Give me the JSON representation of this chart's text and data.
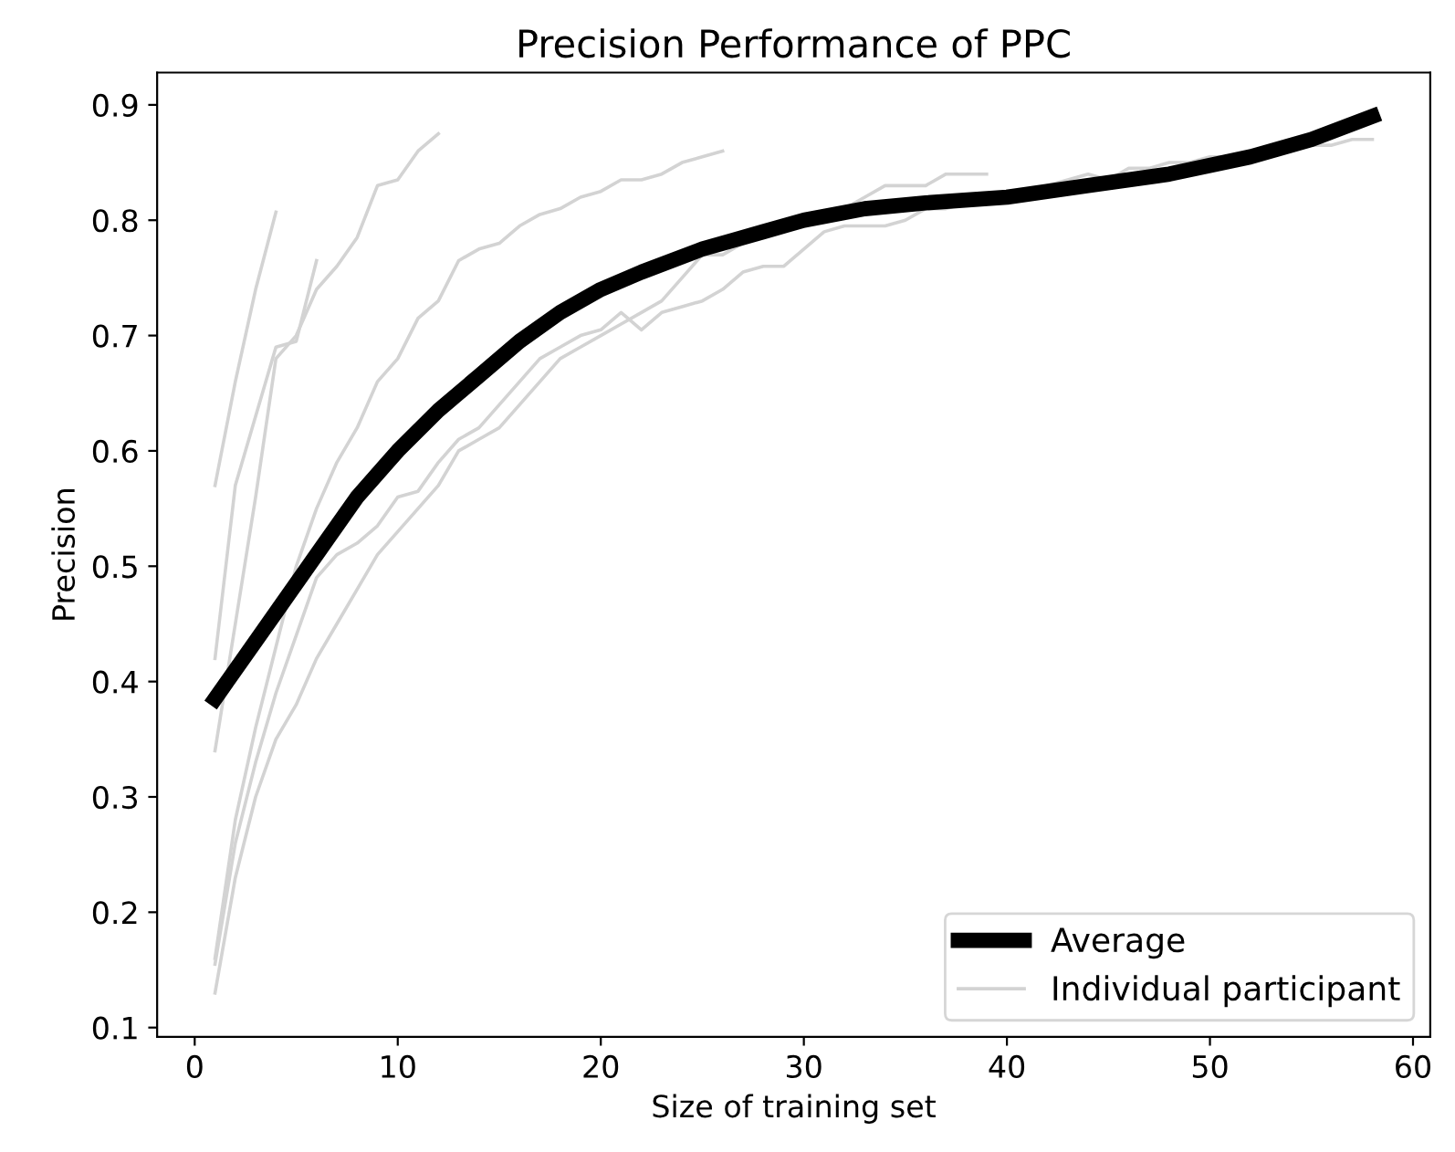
{
  "chart_data": {
    "type": "line",
    "title": "Precision Performance of PPC",
    "xlabel": "Size of training set",
    "ylabel": "Precision",
    "xlim": [
      -1.85,
      60.85
    ],
    "xticks": [
      0,
      10,
      20,
      30,
      40,
      50,
      60
    ],
    "ylim": [
      0.092,
      0.928
    ],
    "yticks": [
      0.1,
      0.2,
      0.3,
      0.4,
      0.5,
      0.6,
      0.7,
      0.8,
      0.9
    ],
    "legend": "bottom right",
    "grid": false,
    "marker": "none",
    "line_style": "solid",
    "series": [
      {
        "name": "Average",
        "color": "#000000",
        "x": [
          1,
          2,
          4,
          6,
          8,
          10,
          12,
          14,
          16,
          18,
          20,
          22,
          25,
          28,
          30,
          33,
          36,
          40,
          44,
          48,
          52,
          55,
          58
        ],
        "values": [
          0.385,
          0.41,
          0.46,
          0.51,
          0.56,
          0.6,
          0.635,
          0.665,
          0.695,
          0.72,
          0.74,
          0.755,
          0.775,
          0.79,
          0.8,
          0.81,
          0.815,
          0.82,
          0.83,
          0.84,
          0.855,
          0.87,
          0.89
        ]
      },
      {
        "name": "Individual participant",
        "color": "#d3d3d3",
        "x": [
          1,
          2,
          3,
          4
        ],
        "values": [
          0.57,
          0.66,
          0.74,
          0.807
        ]
      },
      {
        "color": "#d3d3d3",
        "x": [
          1,
          2,
          3,
          4,
          5,
          6
        ],
        "values": [
          0.42,
          0.57,
          0.63,
          0.69,
          0.695,
          0.765
        ]
      },
      {
        "color": "#d3d3d3",
        "x": [
          1,
          2,
          3,
          4,
          5,
          6,
          7,
          8,
          9,
          10,
          11,
          12
        ],
        "values": [
          0.34,
          0.45,
          0.56,
          0.68,
          0.7,
          0.74,
          0.76,
          0.785,
          0.83,
          0.835,
          0.86,
          0.875
        ]
      },
      {
        "color": "#d3d3d3",
        "x": [
          1,
          2,
          3,
          4,
          5,
          6,
          7,
          8,
          9,
          10,
          11,
          12,
          13,
          14,
          15,
          16,
          17,
          18,
          19,
          20,
          21,
          22,
          23,
          24,
          25,
          26
        ],
        "values": [
          0.16,
          0.28,
          0.36,
          0.43,
          0.5,
          0.55,
          0.59,
          0.62,
          0.66,
          0.68,
          0.715,
          0.73,
          0.765,
          0.775,
          0.78,
          0.795,
          0.805,
          0.81,
          0.82,
          0.825,
          0.835,
          0.835,
          0.84,
          0.85,
          0.855,
          0.86
        ]
      },
      {
        "color": "#d3d3d3",
        "x": [
          1,
          2,
          3,
          4,
          5,
          6,
          7,
          8,
          9,
          10,
          11,
          12,
          13,
          14,
          15,
          16,
          17,
          18,
          19,
          20,
          21,
          22,
          23,
          24,
          25,
          26,
          27,
          28,
          29,
          30,
          31,
          32,
          33,
          34,
          35,
          36,
          37,
          38,
          39
        ],
        "values": [
          0.13,
          0.23,
          0.3,
          0.35,
          0.38,
          0.42,
          0.45,
          0.48,
          0.51,
          0.53,
          0.55,
          0.57,
          0.6,
          0.61,
          0.62,
          0.64,
          0.66,
          0.68,
          0.69,
          0.7,
          0.71,
          0.72,
          0.73,
          0.75,
          0.77,
          0.77,
          0.78,
          0.79,
          0.79,
          0.8,
          0.8,
          0.81,
          0.82,
          0.83,
          0.83,
          0.83,
          0.84,
          0.84,
          0.84
        ]
      },
      {
        "color": "#d3d3d3",
        "x": [
          1,
          2,
          3,
          4,
          5,
          6,
          7,
          8,
          9,
          10,
          11,
          12,
          13,
          14,
          15,
          16,
          17,
          18,
          19,
          20,
          21,
          22,
          23,
          24,
          25,
          26,
          27,
          28,
          29,
          30,
          31,
          32,
          33,
          34,
          35,
          36,
          37,
          38,
          39,
          40,
          41,
          42,
          43,
          44,
          45,
          46,
          47,
          48,
          49,
          50,
          51,
          52,
          53,
          54,
          55,
          56,
          57,
          58
        ],
        "values": [
          0.155,
          0.26,
          0.33,
          0.39,
          0.44,
          0.49,
          0.51,
          0.52,
          0.535,
          0.56,
          0.565,
          0.59,
          0.61,
          0.62,
          0.64,
          0.66,
          0.68,
          0.69,
          0.7,
          0.705,
          0.72,
          0.705,
          0.72,
          0.725,
          0.73,
          0.74,
          0.755,
          0.76,
          0.76,
          0.775,
          0.79,
          0.795,
          0.795,
          0.795,
          0.8,
          0.81,
          0.81,
          0.815,
          0.82,
          0.825,
          0.825,
          0.83,
          0.835,
          0.84,
          0.835,
          0.845,
          0.845,
          0.85,
          0.85,
          0.855,
          0.855,
          0.86,
          0.86,
          0.86,
          0.865,
          0.865,
          0.87,
          0.87
        ]
      }
    ]
  }
}
